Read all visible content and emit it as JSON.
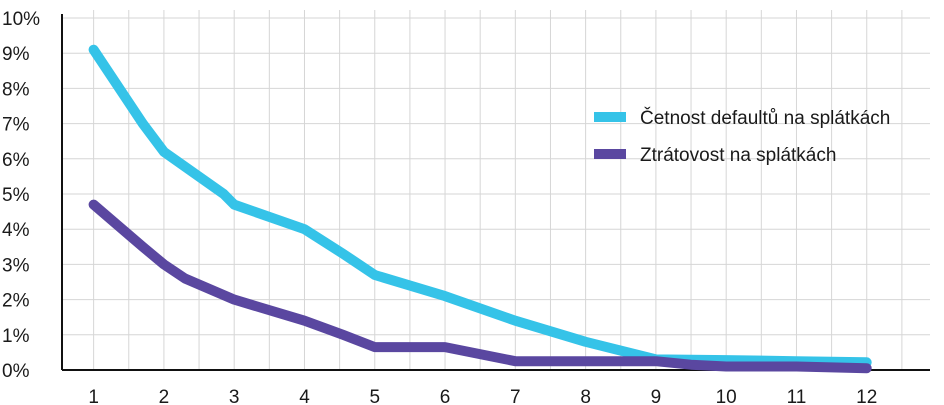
{
  "chart_data": {
    "type": "line",
    "title": "",
    "xlabel": "",
    "ylabel": "",
    "categories": [
      "1",
      "2",
      "3",
      "4",
      "5",
      "6",
      "7",
      "8",
      "9",
      "10",
      "11",
      "12"
    ],
    "x": [
      1,
      1.7,
      2,
      2.3,
      2.85,
      3,
      4,
      4.55,
      5,
      5.5,
      6,
      7,
      8,
      9,
      9.5,
      10,
      11,
      12
    ],
    "ylim": [
      0,
      10
    ],
    "y_tick_labels": [
      "0%",
      "1%",
      "2%",
      "3%",
      "4%",
      "5%",
      "6%",
      "7%",
      "8%",
      "9%",
      "10%"
    ],
    "grid": true,
    "legend_position": "right",
    "series": [
      {
        "name": "Četnost defaultů na splátkách",
        "color": "#35c3e8",
        "points": [
          [
            1,
            9.1
          ],
          [
            1.7,
            7.0
          ],
          [
            2,
            6.2
          ],
          [
            2.85,
            5.0
          ],
          [
            3,
            4.7
          ],
          [
            4,
            4.0
          ],
          [
            4.55,
            3.3
          ],
          [
            5,
            2.7
          ],
          [
            6,
            2.1
          ],
          [
            7,
            1.4
          ],
          [
            8,
            0.8
          ],
          [
            9,
            0.3
          ],
          [
            10,
            0.28
          ],
          [
            11,
            0.25
          ],
          [
            12,
            0.22
          ]
        ],
        "values": [
          9.1,
          6.2,
          4.7,
          4.0,
          2.7,
          2.1,
          1.4,
          0.8,
          0.3,
          0.28,
          0.25,
          0.22
        ]
      },
      {
        "name": "Ztrátovost na splátkách",
        "color": "#5a47a0",
        "points": [
          [
            1,
            4.7
          ],
          [
            1.7,
            3.5
          ],
          [
            2,
            3.0
          ],
          [
            2.3,
            2.6
          ],
          [
            3,
            2.0
          ],
          [
            4,
            1.4
          ],
          [
            4.55,
            1.0
          ],
          [
            5,
            0.65
          ],
          [
            6,
            0.65
          ],
          [
            7,
            0.25
          ],
          [
            8,
            0.25
          ],
          [
            9,
            0.25
          ],
          [
            9.5,
            0.15
          ],
          [
            10,
            0.1
          ],
          [
            11,
            0.1
          ],
          [
            12,
            0.05
          ]
        ],
        "values": [
          4.7,
          3.0,
          2.0,
          1.4,
          0.65,
          0.65,
          0.25,
          0.25,
          0.25,
          0.1,
          0.1,
          0.05
        ]
      }
    ]
  }
}
